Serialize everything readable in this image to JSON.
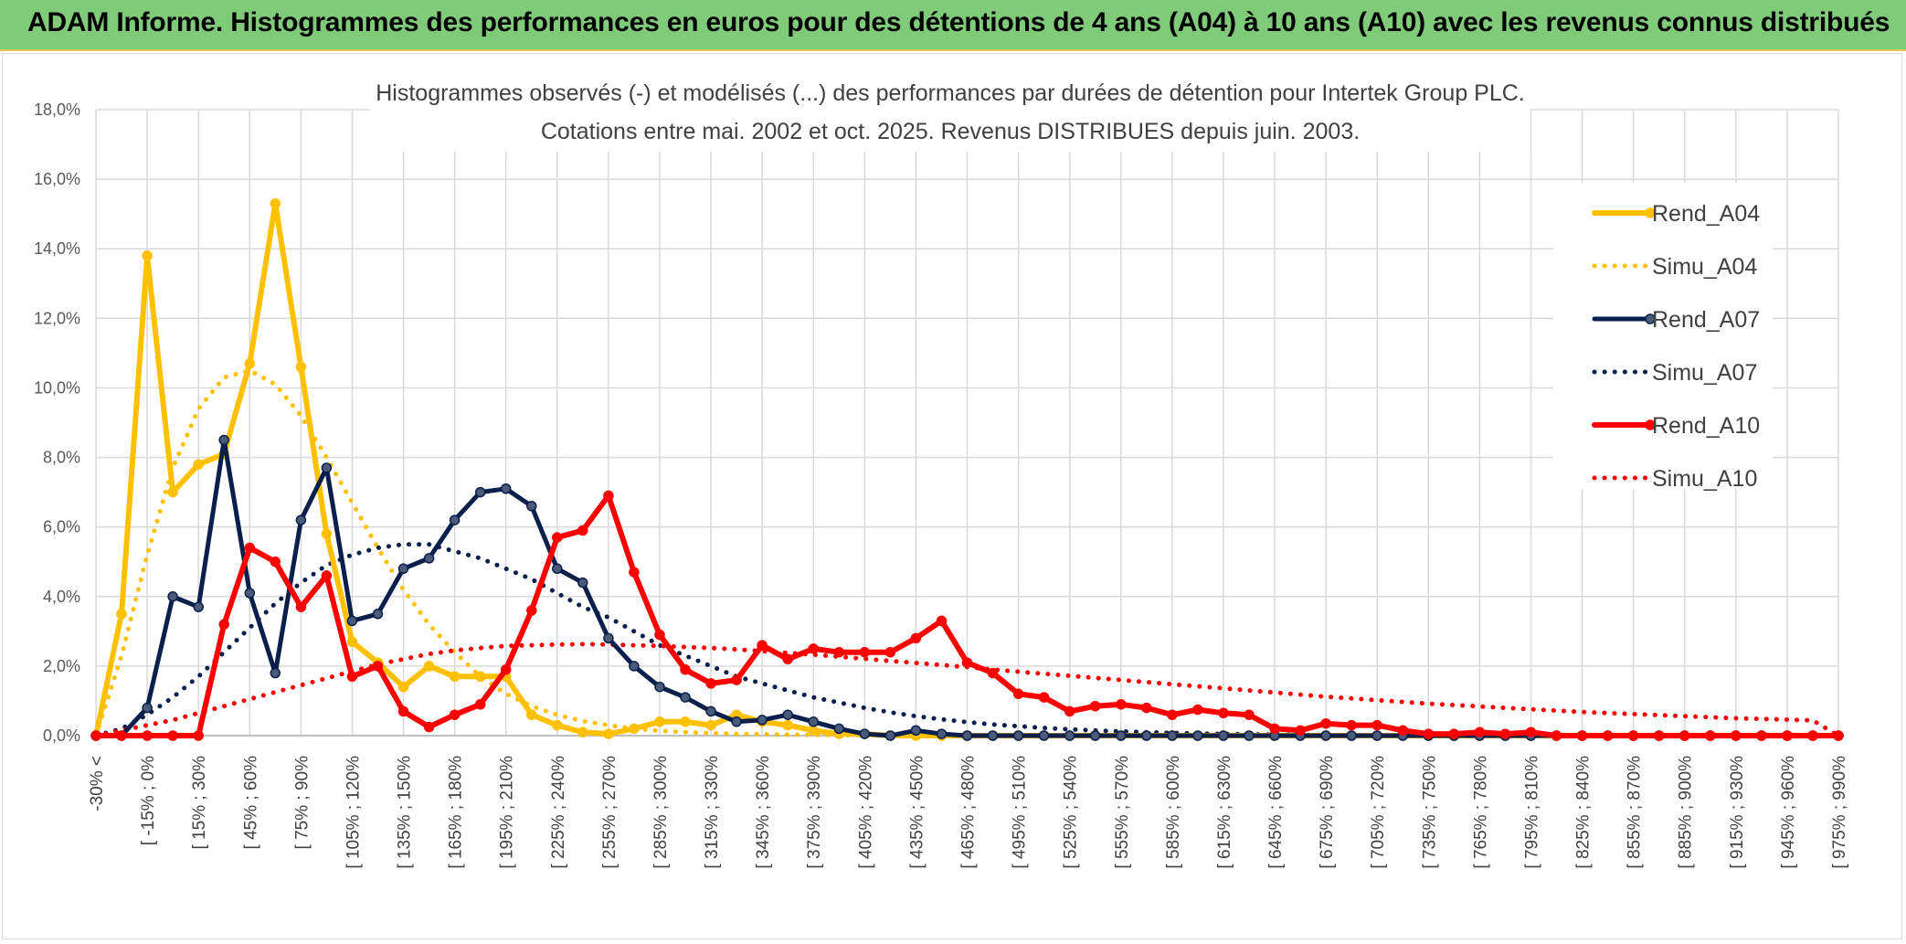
{
  "header": {
    "title": "ADAM Informe. Histogrammes des performances en euros pour des détentions de 4 ans (A04) à 10 ans (A10) avec les revenus connus distribués"
  },
  "chart_data": {
    "type": "line",
    "title": "Histogrammes observés (-) et modélisés (...) des performances par durées de détention pour Intertek Group PLC.",
    "subtitle": "Cotations entre mai. 2002 et oct. 2025. Revenus DISTRIBUES depuis juin. 2003.",
    "xlabel": "",
    "ylabel": "",
    "ylim": [
      0,
      18
    ],
    "y_ticks": [
      "0,0%",
      "2,0%",
      "4,0%",
      "6,0%",
      "8,0%",
      "10,0%",
      "12,0%",
      "14,0%",
      "16,0%",
      "18,0%"
    ],
    "grid": true,
    "legend_position": "right",
    "x_labels": [
      "-30% <",
      "[ -15% ; 0%",
      "[ 15% ; 30%",
      "[ 45% ; 60%",
      "[ 75% ; 90%",
      "[ 105% ; 120%",
      "[ 135% ; 150%",
      "[ 165% ; 180%",
      "[ 195% ; 210%",
      "[ 225% ; 240%",
      "[ 255% ; 270%",
      "[ 285% ; 300%",
      "[ 315% ; 330%",
      "[ 345% ; 360%",
      "[ 375% ; 390%",
      "[ 405% ; 420%",
      "[ 435% ; 450%",
      "[ 465% ; 480%",
      "[ 495% ; 510%",
      "[ 525% ; 540%",
      "[ 555% ; 570%",
      "[ 585% ; 600%",
      "[ 615% ; 630%",
      "[ 645% ; 660%",
      "[ 675% ; 690%",
      "[ 705% ; 720%",
      "[ 735% ; 750%",
      "[ 765% ; 780%",
      "[ 795% ; 810%",
      "[ 825% ; 840%",
      "[ 855% ; 870%",
      "[ 885% ; 900%",
      "[ 915% ; 930%",
      "[ 945% ; 960%",
      "[ 975% ; 990%"
    ],
    "x_count": 69,
    "series": [
      {
        "name": "Rend_A04",
        "color": "#ffc000",
        "style": "solid",
        "markers": true,
        "width": 6,
        "values": [
          0,
          3.5,
          13.8,
          7,
          7.8,
          8.1,
          10.7,
          15.3,
          10.6,
          5.8,
          2.7,
          2.1,
          1.4,
          2,
          1.7,
          1.7,
          1.7,
          0.6,
          0.3,
          0.1,
          0.05,
          0.2,
          0.4,
          0.4,
          0.3,
          0.6,
          0.4,
          0.3,
          0.15,
          0.05,
          0.05,
          0,
          0,
          0,
          0,
          0,
          0,
          0,
          0,
          0,
          0,
          0,
          0,
          0,
          0,
          0,
          0,
          0,
          0,
          0,
          0,
          0,
          0,
          0,
          0,
          0,
          0,
          0,
          0,
          0,
          0,
          0,
          0,
          0,
          0,
          0,
          0,
          0,
          0
        ]
      },
      {
        "name": "Simu_A04",
        "color": "#ffc000",
        "style": "dotted",
        "markers": false,
        "width": 5,
        "values": [
          0,
          2.3,
          5.2,
          7.7,
          9.4,
          10.3,
          10.5,
          10.1,
          9.2,
          8.0,
          6.7,
          5.4,
          4.2,
          3.2,
          2.4,
          1.7,
          1.2,
          0.85,
          0.6,
          0.42,
          0.3,
          0.2,
          0.14,
          0.1,
          0.07,
          0.05,
          0.04,
          0.03,
          0.02,
          0.01,
          0.01,
          0,
          0,
          0,
          0,
          0,
          0,
          0,
          0,
          0,
          0,
          0,
          0,
          0,
          0,
          0,
          0,
          0,
          0,
          0,
          0,
          0,
          0,
          0,
          0,
          0,
          0,
          0,
          0,
          0,
          0,
          0,
          0,
          0,
          0,
          0,
          0,
          0,
          0
        ]
      },
      {
        "name": "Rend_A07",
        "color": "#0b1f4d",
        "style": "solid",
        "markers": true,
        "width": 5,
        "values": [
          0,
          0,
          0.8,
          4,
          3.7,
          8.5,
          4.1,
          1.8,
          6.2,
          7.7,
          3.3,
          3.5,
          4.8,
          5.1,
          6.2,
          7,
          7.1,
          6.6,
          4.8,
          4.4,
          2.8,
          2,
          1.4,
          1.1,
          0.7,
          0.4,
          0.45,
          0.6,
          0.4,
          0.2,
          0.05,
          0,
          0.15,
          0.05,
          0,
          0,
          0,
          0,
          0,
          0,
          0,
          0,
          0,
          0,
          0,
          0,
          0,
          0,
          0,
          0,
          0,
          0,
          0,
          0,
          0,
          0,
          0,
          0,
          0,
          0,
          0,
          0,
          0,
          0,
          0,
          0,
          0,
          0,
          0
        ]
      },
      {
        "name": "Simu_A07",
        "color": "#0b1f4d",
        "style": "dotted",
        "markers": false,
        "width": 5,
        "values": [
          0,
          0.2,
          0.6,
          1.1,
          1.7,
          2.4,
          3.1,
          3.8,
          4.4,
          4.9,
          5.2,
          5.4,
          5.5,
          5.5,
          5.3,
          5.1,
          4.8,
          4.5,
          4.1,
          3.7,
          3.4,
          3.0,
          2.6,
          2.3,
          2.0,
          1.7,
          1.5,
          1.3,
          1.1,
          0.95,
          0.8,
          0.67,
          0.56,
          0.47,
          0.39,
          0.32,
          0.27,
          0.22,
          0.18,
          0.15,
          0.12,
          0.1,
          0.08,
          0.06,
          0.05,
          0.04,
          0.03,
          0.02,
          0.02,
          0.01,
          0.01,
          0,
          0,
          0,
          0,
          0,
          0,
          0,
          0,
          0,
          0,
          0,
          0,
          0,
          0,
          0,
          0,
          0,
          0
        ]
      },
      {
        "name": "Rend_A10",
        "color": "#ff0000",
        "style": "solid",
        "markers": true,
        "width": 6,
        "values": [
          0,
          0,
          0,
          0,
          0,
          3.2,
          5.4,
          5,
          3.7,
          4.6,
          1.7,
          2,
          0.7,
          0.25,
          0.6,
          0.9,
          1.9,
          3.6,
          5.7,
          5.9,
          6.9,
          4.7,
          2.9,
          1.9,
          1.5,
          1.6,
          2.6,
          2.2,
          2.5,
          2.4,
          2.4,
          2.4,
          2.8,
          3.3,
          2.1,
          1.8,
          1.2,
          1.1,
          0.7,
          0.85,
          0.9,
          0.8,
          0.6,
          0.75,
          0.65,
          0.6,
          0.2,
          0.15,
          0.35,
          0.3,
          0.3,
          0.15,
          0.05,
          0.05,
          0.1,
          0.05,
          0.1,
          0,
          0,
          0,
          0,
          0,
          0,
          0,
          0,
          0,
          0,
          0,
          0
        ]
      },
      {
        "name": "Simu_A10",
        "color": "#ff0000",
        "style": "dotted",
        "markers": false,
        "width": 5,
        "values": [
          0,
          0.15,
          0.3,
          0.45,
          0.65,
          0.85,
          1.05,
          1.25,
          1.45,
          1.65,
          1.85,
          2.05,
          2.2,
          2.35,
          2.45,
          2.52,
          2.58,
          2.6,
          2.62,
          2.63,
          2.62,
          2.6,
          2.58,
          2.55,
          2.52,
          2.48,
          2.43,
          2.38,
          2.33,
          2.27,
          2.21,
          2.15,
          2.09,
          2.03,
          1.97,
          1.9,
          1.84,
          1.78,
          1.72,
          1.66,
          1.6,
          1.54,
          1.48,
          1.42,
          1.36,
          1.3,
          1.24,
          1.18,
          1.12,
          1.07,
          1.02,
          0.97,
          0.92,
          0.88,
          0.84,
          0.8,
          0.76,
          0.72,
          0.68,
          0.65,
          0.62,
          0.59,
          0.56,
          0.53,
          0.5,
          0.48,
          0.46,
          0.44,
          0
        ]
      }
    ]
  }
}
